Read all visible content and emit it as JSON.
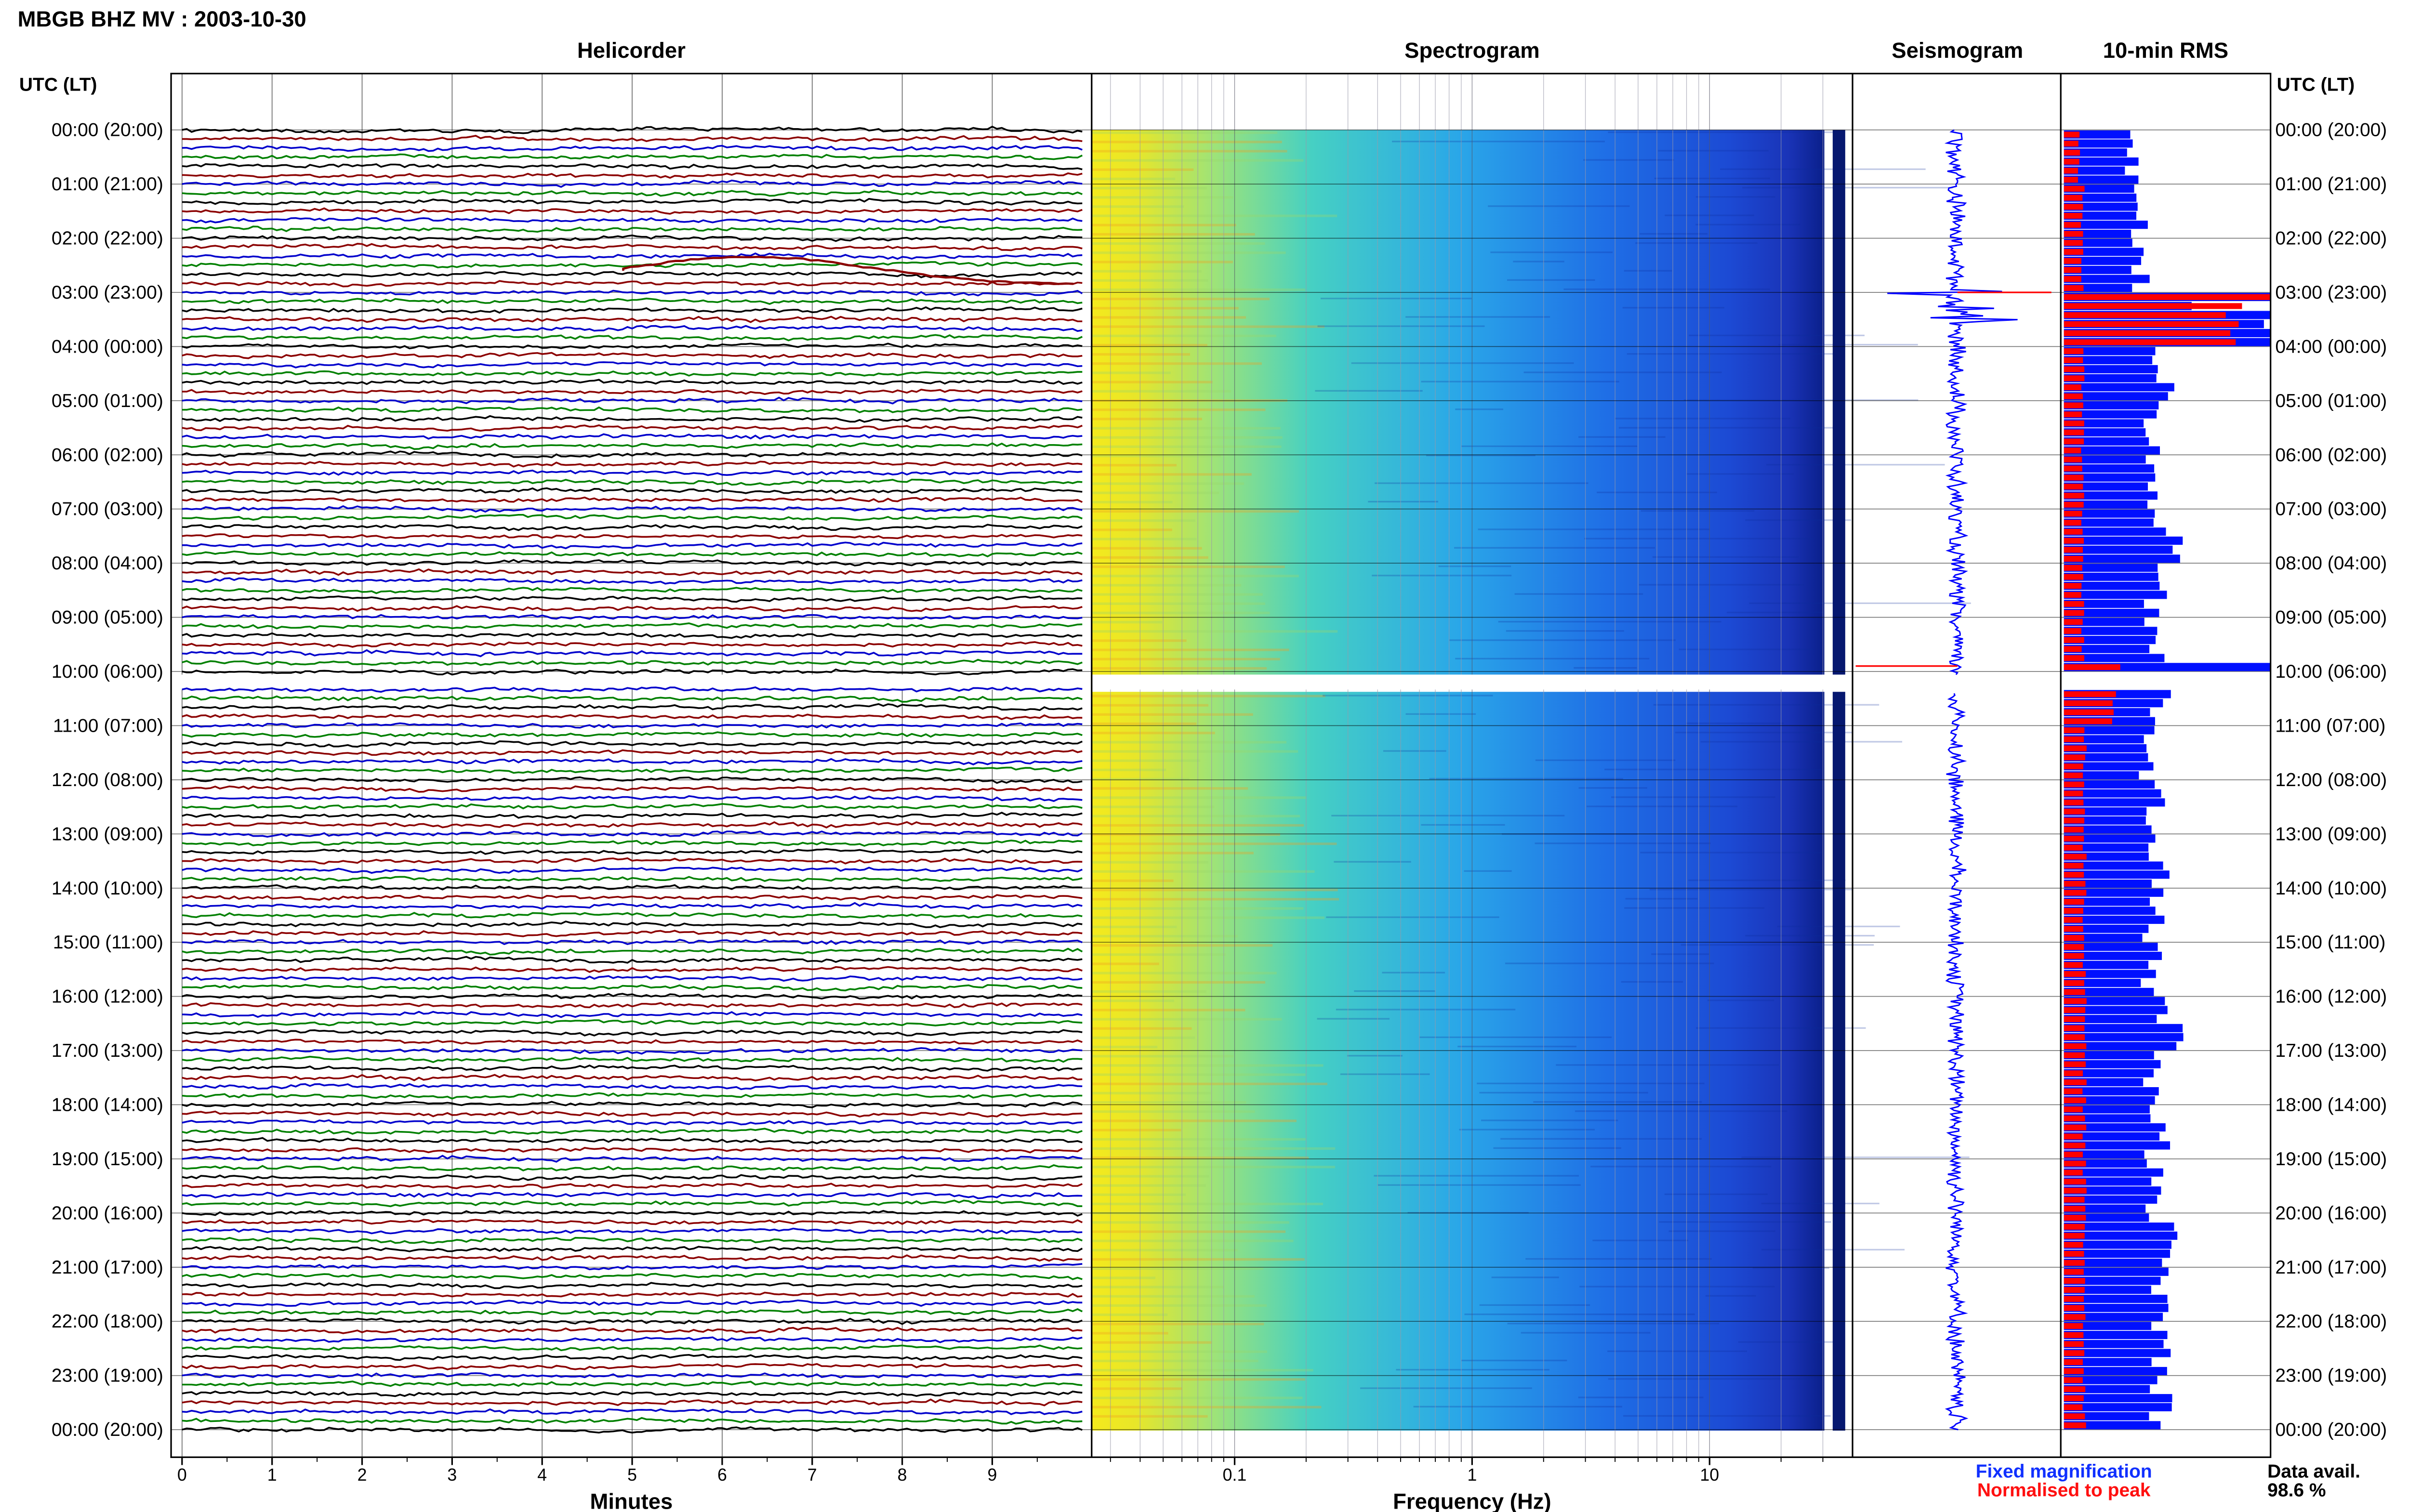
{
  "header": {
    "title": "MBGB BHZ MV : 2003-10-30"
  },
  "panels": {
    "helicorder": "Helicorder",
    "spectrogram": "Spectrogram",
    "seismogram": "Seismogram",
    "rms": "10-min RMS"
  },
  "axes": {
    "time_header_left": "UTC (LT)",
    "time_header_right": "UTC (LT)",
    "helicorder_xlabel": "Minutes",
    "spectrogram_xlabel": "Frequency (Hz)"
  },
  "legend": {
    "fixed": "Fixed magnification",
    "normalised": "Normalised to peak",
    "fixed_color": "#0000ff",
    "normalised_color": "#ff0000"
  },
  "availability": {
    "label": "Data avail.",
    "value": "98.6 %"
  },
  "chart_data": {
    "type": "helicorder-spectrogram",
    "time_labels": [
      "00:00 (20:00)",
      "01:00 (21:00)",
      "02:00 (22:00)",
      "03:00 (23:00)",
      "04:00 (00:00)",
      "05:00 (01:00)",
      "06:00 (02:00)",
      "07:00 (03:00)",
      "08:00 (04:00)",
      "09:00 (05:00)",
      "10:00 (06:00)",
      "11:00 (07:00)",
      "12:00 (08:00)",
      "13:00 (09:00)",
      "14:00 (10:00)",
      "15:00 (11:00)",
      "16:00 (12:00)",
      "17:00 (13:00)",
      "18:00 (14:00)",
      "19:00 (15:00)",
      "20:00 (16:00)",
      "21:00 (17:00)",
      "22:00 (18:00)",
      "23:00 (19:00)",
      "00:00 (20:00)"
    ],
    "helicorder": {
      "x_ticks": [
        "0",
        "1",
        "2",
        "3",
        "4",
        "5",
        "6",
        "7",
        "8",
        "9"
      ],
      "xlim": [
        0,
        10
      ],
      "trace_colors": [
        "#000000",
        "#8b0000",
        "#0000cc",
        "#008000"
      ],
      "gap_hours": [
        10.0,
        10.333
      ]
    },
    "spectrogram": {
      "x_scale": "log",
      "xlim": [
        0.025,
        40
      ],
      "x_ticks": [
        {
          "value": 0.1,
          "label": "0.1"
        },
        {
          "value": 1,
          "label": "1"
        },
        {
          "value": 10,
          "label": "10"
        }
      ],
      "data_edge_hz": 33
    },
    "rms": {
      "interval_minutes": 10,
      "fixed_magnification_hourly": [
        3.8,
        3.9,
        4.2,
        12,
        5.2,
        4.6,
        4.6,
        5.5,
        4.8,
        4.9,
        5.0,
        4.4,
        4.8,
        5.0,
        4.8,
        4.6,
        5.8,
        4.6,
        5.0,
        5.1,
        5.3,
        5.2,
        5.2,
        5.3,
        5.4
      ],
      "normalised_to_peak_hourly": [
        0.8,
        1.0,
        1.0,
        9.0,
        1.0,
        1.0,
        1.0,
        1.0,
        1.0,
        1.0,
        2.6,
        1.1,
        1.1,
        1.1,
        1.1,
        1.1,
        1.1,
        1.1,
        1.1,
        1.1,
        1.1,
        1.1,
        1.1,
        1.1,
        1.1
      ],
      "events_hour": [
        3.0,
        9.9
      ]
    }
  }
}
